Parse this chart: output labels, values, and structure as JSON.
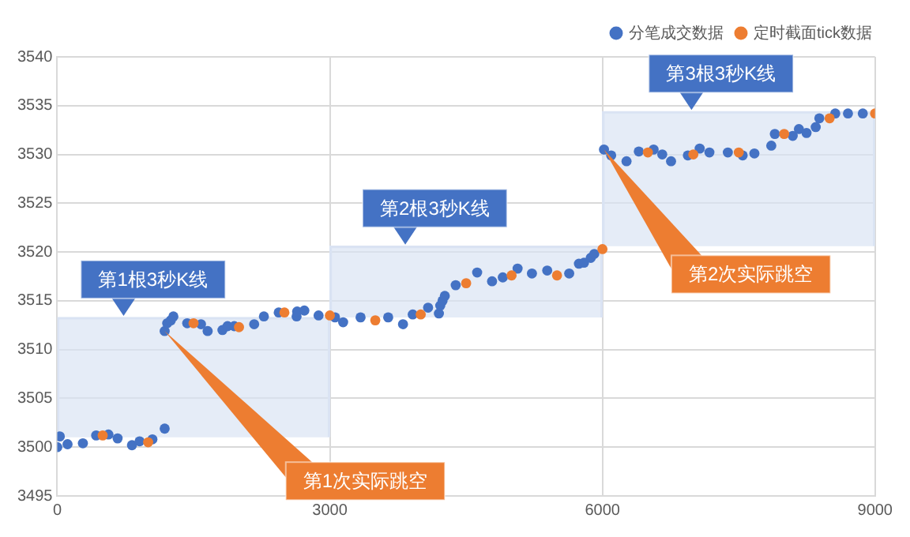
{
  "chart_data": {
    "type": "scatter",
    "legend": "top right",
    "grid": true,
    "marker": "circle",
    "xlim": [
      0,
      9000
    ],
    "xticks": [
      0,
      3000,
      6000,
      9000
    ],
    "ylim": [
      3495,
      3540
    ],
    "yticks": [
      3495,
      3500,
      3505,
      3510,
      3515,
      3520,
      3525,
      3530,
      3535,
      3540
    ],
    "series": [
      {
        "name": "分笔成交数据",
        "color": "#4472c4",
        "x": [
          0,
          28,
          113,
          282,
          428,
          563,
          664,
          822,
          906,
          1047,
          1182,
          1182,
          1210,
          1250,
          1278,
          1430,
          1582,
          1655,
          1818,
          1874,
          1948,
          2167,
          2274,
          2437,
          2634,
          2640,
          2719,
          2876,
          3057,
          3146,
          3338,
          3642,
          3805,
          3912,
          4081,
          4200,
          4215,
          4240,
          4265,
          4385,
          4621,
          4785,
          4903,
          5066,
          5224,
          5392,
          5634,
          5741,
          5797,
          5871,
          5910,
          6017,
          6096,
          6265,
          6400,
          6563,
          6658,
          6755,
          6940,
          7070,
          7177,
          7380,
          7543,
          7672,
          7858,
          7897,
          8094,
          8162,
          8246,
          8347,
          8387,
          8562,
          8702,
          8865
        ],
        "values": [
          3500.0,
          3501.1,
          3500.3,
          3500.4,
          3501.2,
          3501.3,
          3500.9,
          3500.2,
          3500.6,
          3500.8,
          3501.9,
          3511.9,
          3512.7,
          3513.0,
          3513.4,
          3512.7,
          3512.6,
          3511.9,
          3512.0,
          3512.4,
          3512.4,
          3512.6,
          3513.4,
          3513.8,
          3513.4,
          3513.9,
          3514.0,
          3513.5,
          3513.3,
          3512.8,
          3513.3,
          3513.3,
          3512.6,
          3513.6,
          3514.3,
          3513.7,
          3514.5,
          3515.0,
          3515.5,
          3516.6,
          3517.9,
          3517.0,
          3517.4,
          3518.3,
          3517.8,
          3518.1,
          3517.8,
          3518.8,
          3518.9,
          3519.4,
          3519.8,
          3530.5,
          3529.9,
          3529.3,
          3530.3,
          3530.5,
          3530.0,
          3529.3,
          3529.9,
          3530.6,
          3530.2,
          3530.2,
          3529.9,
          3530.1,
          3530.9,
          3532.1,
          3531.9,
          3532.6,
          3532.2,
          3532.8,
          3533.7,
          3534.2,
          3534.2,
          3534.2
        ]
      },
      {
        "name": "定时截面tick数据",
        "color": "#ed7d31",
        "x": [
          500,
          1000,
          1500,
          2000,
          2500,
          3000,
          3500,
          4000,
          4500,
          5000,
          5500,
          6000,
          6500,
          7000,
          7500,
          8000,
          8500,
          9000
        ],
        "values": [
          3501.2,
          3500.5,
          3512.7,
          3512.3,
          3513.8,
          3513.5,
          3513.0,
          3513.6,
          3516.8,
          3517.6,
          3517.6,
          3520.3,
          3530.2,
          3530.0,
          3530.2,
          3532.1,
          3533.7,
          3534.2
        ]
      },
      {
        "type": "bar",
        "color": "#dae3f3",
        "x": [
          1500,
          4500,
          7500
        ],
        "base": [
          3501.0,
          3513.3,
          3520.6
        ],
        "values": [
          12.3,
          7.3,
          13.8
        ]
      }
    ],
    "annotations": [
      {
        "text": "第1根3秒K线",
        "x": 730,
        "y": 3513.3
      },
      {
        "text": "第2根3秒K线",
        "x": 3830,
        "y": 3520.6
      },
      {
        "text": "第3根3秒K线",
        "x": 6980,
        "y": 3534.4
      },
      "第1次实际跳空",
      "第2次实际跳空"
    ]
  }
}
